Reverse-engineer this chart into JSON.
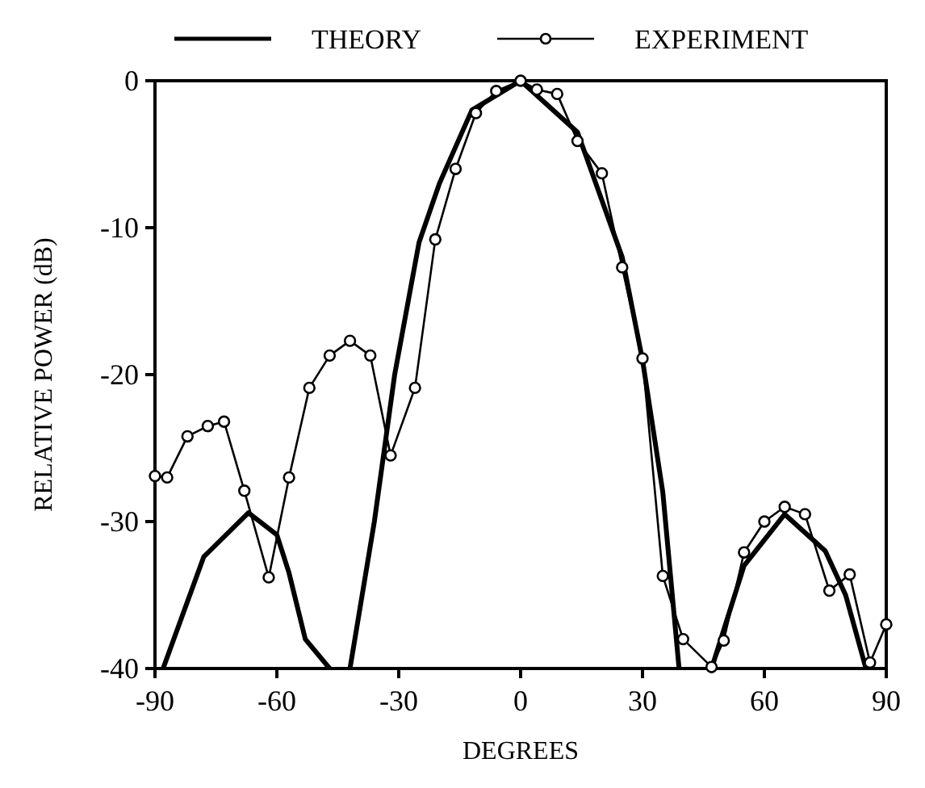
{
  "chart_data": {
    "type": "line",
    "xlabel": "DEGREES",
    "ylabel": "RELATIVE POWER (dB)",
    "xlim": [
      -90,
      90
    ],
    "xticks": [
      -90,
      -60,
      -30,
      0,
      30,
      60,
      90
    ],
    "ylim": [
      -40,
      0
    ],
    "yticks": [
      -40,
      -30,
      -20,
      -10,
      0
    ],
    "legend": "top",
    "grid": false,
    "series": [
      {
        "name": "THEORY",
        "color": "#000000",
        "marker": "none",
        "line_style": "solid",
        "x": [
          -88,
          -78,
          -67,
          -60,
          -57,
          -53,
          -47,
          null,
          -42,
          -36,
          -31,
          -25,
          -20,
          -12,
          0,
          14,
          25,
          30,
          35,
          39,
          null,
          47,
          55,
          65,
          75,
          80,
          85
        ],
        "values": [
          -40,
          -32.4,
          -29.4,
          -30.9,
          -33.5,
          -38,
          -40,
          null,
          -40,
          -30,
          -20,
          -11,
          -7,
          -2,
          0,
          -3.5,
          -12,
          -19,
          -28,
          -40,
          null,
          -40,
          -33,
          -29.5,
          -32,
          -35,
          -40
        ]
      },
      {
        "name": "EXPERIMENT",
        "color": "#000000",
        "marker": "circle",
        "line_style": "solid",
        "x": [
          -90,
          -87,
          -82,
          -77,
          -73,
          -68,
          -62,
          -57,
          -52,
          -47,
          -42,
          -37,
          -32,
          -26,
          -21,
          -16,
          -11,
          -6,
          0,
          4,
          9,
          14,
          20,
          25,
          30,
          35,
          40,
          47,
          50,
          55,
          60,
          65,
          70,
          76,
          81,
          86,
          90
        ],
        "values": [
          -26.9,
          -27,
          -24.2,
          -23.5,
          -23.2,
          -27.9,
          -33.8,
          -27,
          -20.9,
          -18.7,
          -17.7,
          -18.7,
          -25.5,
          -20.9,
          -10.8,
          -6,
          -2.2,
          -0.7,
          0,
          -0.6,
          -0.9,
          -4.1,
          -6.3,
          -12.7,
          -18.9,
          -33.7,
          -38,
          -39.9,
          -38.1,
          -32.1,
          -30,
          -29,
          -29.5,
          -34.7,
          -33.6,
          -39.6,
          -37
        ]
      }
    ]
  }
}
